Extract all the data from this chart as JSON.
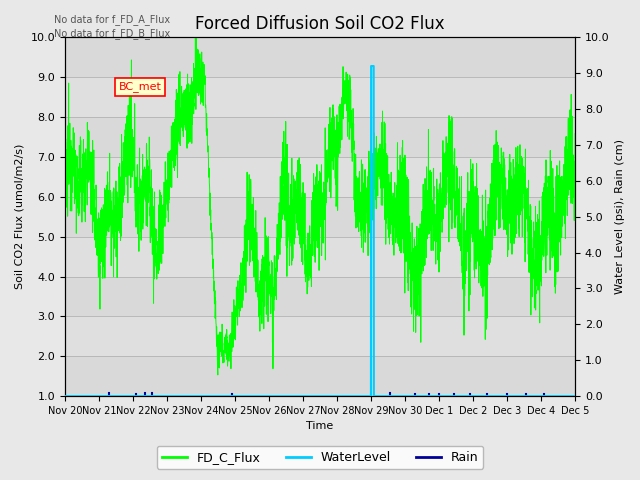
{
  "title": "Forced Diffusion Soil CO2 Flux",
  "xlabel": "Time",
  "ylabel_left": "Soil CO2 Flux (umol/m2/s)",
  "ylabel_right": "Water Level (psi), Rain (cm)",
  "ylim_left": [
    1.0,
    10.0
  ],
  "ylim_right": [
    0.0,
    10.0
  ],
  "no_data_text": [
    "No data for f_FD_A_Flux",
    "No data for f_FD_B_Flux"
  ],
  "bc_met_label": "BC_met",
  "legend_entries": [
    "FD_C_Flux",
    "WaterLevel",
    "Rain"
  ],
  "flux_color": "#00ff00",
  "water_color": "#00ccff",
  "rain_color": "#000099",
  "background_color": "#e8e8e8",
  "band_colors": [
    "#d8d8d8",
    "#e8e8e8"
  ],
  "title_fontsize": 12,
  "axis_fontsize": 8,
  "tick_fontsize": 8,
  "xlim": [
    0,
    15
  ],
  "xtick_positions": [
    0,
    1,
    2,
    3,
    4,
    5,
    6,
    7,
    8,
    9,
    10,
    11,
    12,
    13,
    14,
    15
  ],
  "xtick_labels": [
    "Nov 20",
    "Nov 21",
    "Nov 22",
    "Nov 23",
    "Nov 24",
    "Nov 25",
    "Nov 26",
    "Nov 27",
    "Nov 28",
    "Nov 29",
    "Nov 30",
    "Dec 1",
    "Dec 2",
    "Dec 3",
    "Dec 4",
    "Dec 5"
  ],
  "yticks_left": [
    1.0,
    2.0,
    3.0,
    4.0,
    5.0,
    6.0,
    7.0,
    8.0,
    9.0,
    10.0
  ],
  "yticks_right": [
    0.0,
    1.0,
    2.0,
    3.0,
    4.0,
    5.0,
    6.0,
    7.0,
    8.0,
    9.0,
    10.0
  ]
}
